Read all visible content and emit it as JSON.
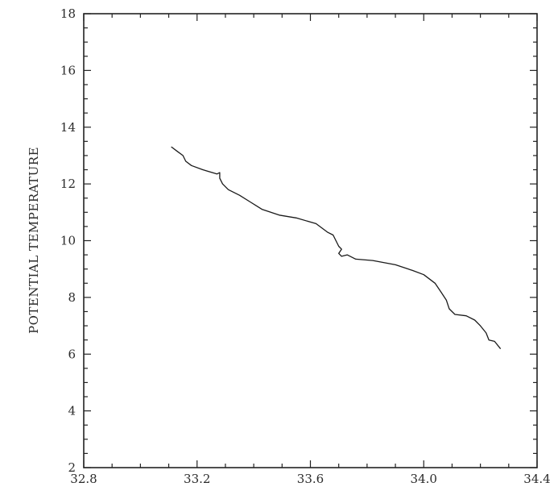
{
  "chart_data": {
    "type": "line",
    "title": "",
    "xlabel": "",
    "ylabel": "POTENTIAL TEMPERATURE",
    "xlim": [
      32.8,
      34.4
    ],
    "ylim": [
      2,
      18
    ],
    "x_ticks": [
      "32.8",
      "33.2",
      "33.6",
      "34.0",
      "34.4"
    ],
    "y_ticks": [
      "2",
      "4",
      "6",
      "8",
      "10",
      "12",
      "14",
      "16",
      "18"
    ],
    "grid": false,
    "series": [
      {
        "color": "#1a1a1a",
        "points": [
          [
            33.11,
            13.3
          ],
          [
            33.13,
            13.15
          ],
          [
            33.15,
            13.0
          ],
          [
            33.16,
            12.8
          ],
          [
            33.18,
            12.65
          ],
          [
            33.22,
            12.5
          ],
          [
            33.27,
            12.35
          ],
          [
            33.28,
            12.4
          ],
          [
            33.28,
            12.2
          ],
          [
            33.29,
            12.0
          ],
          [
            33.31,
            11.8
          ],
          [
            33.35,
            11.6
          ],
          [
            33.39,
            11.35
          ],
          [
            33.43,
            11.1
          ],
          [
            33.49,
            10.9
          ],
          [
            33.55,
            10.8
          ],
          [
            33.62,
            10.6
          ],
          [
            33.66,
            10.3
          ],
          [
            33.68,
            10.2
          ],
          [
            33.69,
            10.0
          ],
          [
            33.7,
            9.8
          ],
          [
            33.71,
            9.7
          ],
          [
            33.7,
            9.55
          ],
          [
            33.71,
            9.45
          ],
          [
            33.73,
            9.5
          ],
          [
            33.76,
            9.35
          ],
          [
            33.82,
            9.3
          ],
          [
            33.9,
            9.15
          ],
          [
            33.96,
            8.95
          ],
          [
            34.0,
            8.8
          ],
          [
            34.04,
            8.5
          ],
          [
            34.06,
            8.2
          ],
          [
            34.08,
            7.9
          ],
          [
            34.09,
            7.6
          ],
          [
            34.11,
            7.4
          ],
          [
            34.15,
            7.35
          ],
          [
            34.18,
            7.2
          ],
          [
            34.2,
            7.0
          ],
          [
            34.22,
            6.75
          ],
          [
            34.23,
            6.5
          ],
          [
            34.25,
            6.45
          ],
          [
            34.27,
            6.2
          ]
        ]
      }
    ]
  }
}
